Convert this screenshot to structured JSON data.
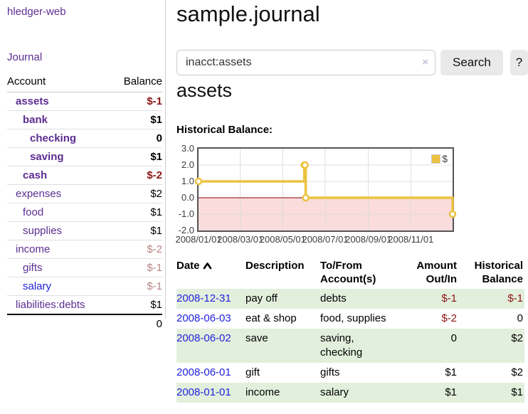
{
  "sidebar": {
    "brand": "hledger-web",
    "nav": [
      {
        "label": "Journal"
      }
    ],
    "accounts_table": {
      "headers": [
        "Account",
        "Balance"
      ],
      "rows": [
        {
          "account": "assets",
          "balance": "$-1",
          "level": 1,
          "bold": true,
          "balance_style": "neg-strong",
          "link_color": "purple"
        },
        {
          "account": "bank",
          "balance": "$1",
          "level": 2,
          "bold": true,
          "balance_style": "",
          "link_color": "purple"
        },
        {
          "account": "checking",
          "balance": "0",
          "level": 3,
          "bold": true,
          "balance_style": "",
          "link_color": "purple"
        },
        {
          "account": "saving",
          "balance": "$1",
          "level": 3,
          "bold": true,
          "balance_style": "",
          "link_color": "purple"
        },
        {
          "account": "cash",
          "balance": "$-2",
          "level": 2,
          "bold": true,
          "balance_style": "neg-strong",
          "link_color": "purple"
        },
        {
          "account": "expenses",
          "balance": "$2",
          "level": 1,
          "bold": false,
          "balance_style": "",
          "link_color": "purple"
        },
        {
          "account": "food",
          "balance": "$1",
          "level": 2,
          "bold": false,
          "balance_style": "",
          "link_color": "purple"
        },
        {
          "account": "supplies",
          "balance": "$1",
          "level": 2,
          "bold": false,
          "balance_style": "",
          "link_color": "purple"
        },
        {
          "account": "income",
          "balance": "$-2",
          "level": 1,
          "bold": false,
          "balance_style": "neg-soft",
          "link_color": "purple"
        },
        {
          "account": "gifts",
          "balance": "$-1",
          "level": 2,
          "bold": false,
          "balance_style": "neg-soft",
          "link_color": "purple"
        },
        {
          "account": "salary",
          "balance": "$-1",
          "level": 2,
          "bold": false,
          "balance_style": "neg-soft",
          "link_color": "blue"
        },
        {
          "account": "liabilities:debts",
          "balance": "$1",
          "level": 1,
          "bold": false,
          "balance_style": "",
          "link_color": "purple"
        }
      ],
      "total": "0"
    }
  },
  "header": {
    "title": "sample.journal"
  },
  "search": {
    "value": "inacct:assets",
    "clear_icon": "×",
    "button_label": "Search",
    "help_label": "?"
  },
  "account_page": {
    "heading": "assets",
    "chart_title": "Historical Balance:"
  },
  "chart_data": {
    "type": "line",
    "title": "Historical Balance:",
    "step": true,
    "series": [
      {
        "name": "$",
        "color": "#edc240",
        "points": [
          [
            "2008-01-01",
            1
          ],
          [
            "2008-06-01",
            2
          ],
          [
            "2008-06-02",
            2
          ],
          [
            "2008-06-03",
            0
          ],
          [
            "2008-12-31",
            -1
          ]
        ]
      }
    ],
    "x_ticks": [
      "2008/01/01",
      "2008/03/01",
      "2008/05/01",
      "2008/07/01",
      "2008/09/01",
      "2008/11/01"
    ],
    "y_ticks": [
      3.0,
      2.0,
      1.0,
      0.0,
      -1.0,
      -2.0
    ],
    "ylim": [
      -2,
      3
    ],
    "grid": true,
    "legend": {
      "label": "$",
      "position": "top-right"
    },
    "negative_region": {
      "below": 0,
      "fill": "#fbdcdc",
      "line": "#800000"
    }
  },
  "register_table": {
    "headers": {
      "date": "Date",
      "description": "Description",
      "accounts": "To/From Account(s)",
      "amount": "Amount Out/In",
      "balance": "Historical Balance"
    },
    "sort": {
      "column": "date",
      "direction": "ascending",
      "icon": "caret-up-icon"
    },
    "rows": [
      {
        "date": "2008-12-31",
        "description": "pay off",
        "accounts": "debts",
        "wrap_accounts": false,
        "amount": "$-1",
        "amount_neg": true,
        "balance": "$-1",
        "balance_neg": true
      },
      {
        "date": "2008-06-03",
        "description": "eat & shop",
        "accounts": "food, supplies",
        "wrap_accounts": false,
        "amount": "$-2",
        "amount_neg": true,
        "balance": "0",
        "balance_neg": false
      },
      {
        "date": "2008-06-02",
        "description": "save",
        "accounts": "saving, checking",
        "wrap_accounts": true,
        "amount": "0",
        "amount_neg": false,
        "balance": "$2",
        "balance_neg": false
      },
      {
        "date": "2008-06-01",
        "description": "gift",
        "accounts": "gifts",
        "wrap_accounts": false,
        "amount": "$1",
        "amount_neg": false,
        "balance": "$2",
        "balance_neg": false
      },
      {
        "date": "2008-01-01",
        "description": "income",
        "accounts": "salary",
        "wrap_accounts": false,
        "amount": "$1",
        "amount_neg": false,
        "balance": "$1",
        "balance_neg": false
      }
    ]
  },
  "colors": {
    "link_purple": "#5c2d91",
    "link_blue": "#2222dd",
    "negative_strong": "#8b1414",
    "negative_soft": "#b88585",
    "row_green": "#e2efdc",
    "series_gold": "#edc240",
    "negative_area_pink": "#fbdcdc",
    "zero_line": "#800000",
    "grid_line": "#dddddd",
    "chart_border": "#545454",
    "button_bg": "#e9e9e9"
  }
}
